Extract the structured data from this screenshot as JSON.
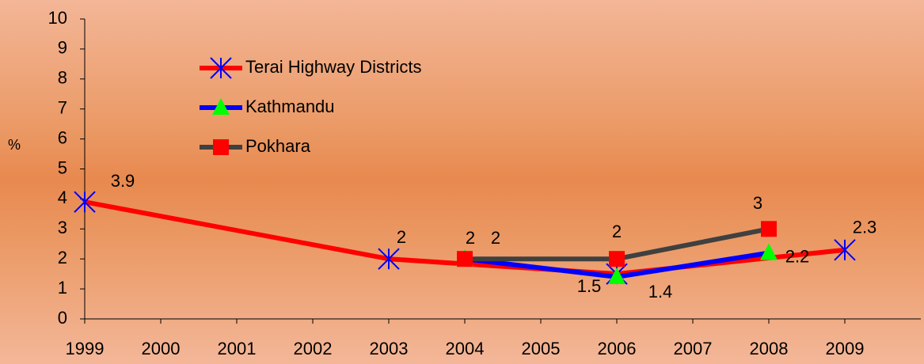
{
  "chart_data": {
    "type": "line",
    "series": [
      {
        "name": "Terai Highway Districts",
        "color": "#ff0000",
        "marker": "asterisk",
        "marker_color": "#0000ff",
        "x": [
          1999,
          2003,
          2006,
          2009
        ],
        "values": [
          3.9,
          2,
          1.5,
          2.3
        ]
      },
      {
        "name": "Kathmandu",
        "color": "#0000ff",
        "marker": "triangle",
        "marker_color": "#00ff00",
        "x": [
          2004,
          2006,
          2008
        ],
        "values": [
          2,
          1.4,
          2.2
        ]
      },
      {
        "name": "Pokhara",
        "color": "#404040",
        "marker": "square",
        "marker_color": "#ff0000",
        "x": [
          2004,
          2006,
          2008
        ],
        "values": [
          2,
          2,
          3
        ]
      }
    ],
    "ylabel": "%",
    "xlim": [
      1999,
      2010
    ],
    "xticks": [
      1999,
      2000,
      2001,
      2002,
      2003,
      2004,
      2005,
      2006,
      2007,
      2008,
      2009
    ],
    "ylim": [
      0,
      10
    ],
    "yticks": [
      0,
      1,
      2,
      3,
      4,
      5,
      6,
      7,
      8,
      9,
      10
    ],
    "legend": "upper left"
  }
}
